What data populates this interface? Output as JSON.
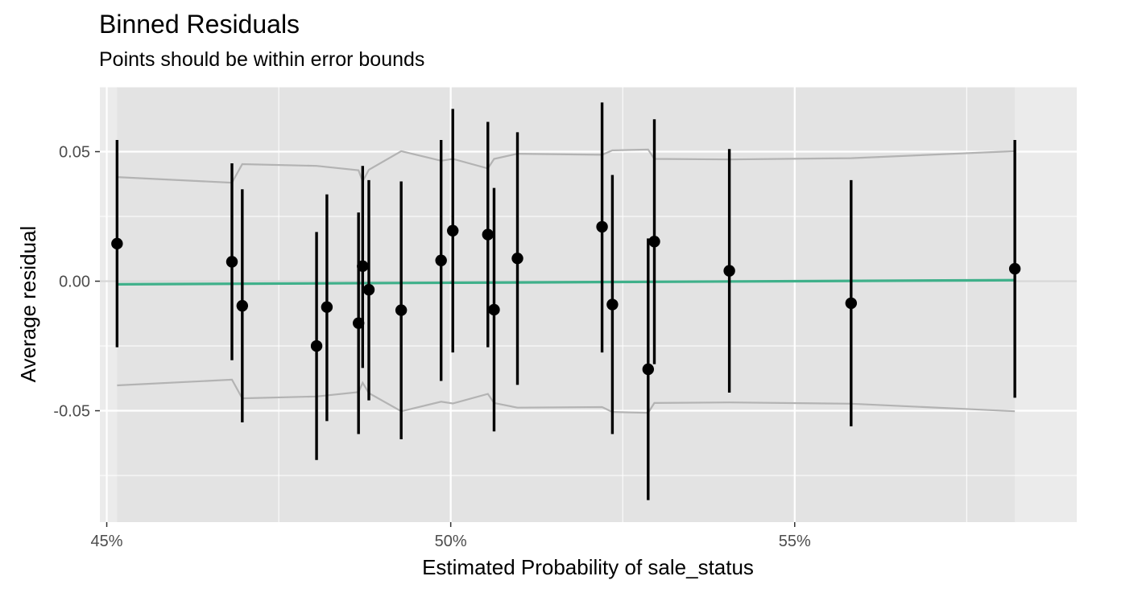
{
  "chart_data": {
    "type": "scatter",
    "title": "Binned Residuals",
    "subtitle": "Points should be within error bounds",
    "xlabel": "Estimated Probability of sale_status",
    "ylabel": "Average residual",
    "xlim": [
      44.9,
      59.1
    ],
    "ylim": [
      -0.093,
      0.075
    ],
    "x_ticks": [
      45,
      50,
      55
    ],
    "x_tick_labels": [
      "45%",
      "50%",
      "55%"
    ],
    "y_ticks": [
      -0.05,
      0.0,
      0.05
    ],
    "y_tick_labels": [
      "-0.05",
      "0.00",
      "0.05"
    ],
    "shaded_band": [
      45.15,
      58.2
    ],
    "colors": {
      "panel": "#ebebeb",
      "band": "#e3e3e3",
      "grid": "#ffffff",
      "bounds": "#b3b3b3",
      "trend": "#3fb08a",
      "points": "#000000"
    },
    "points": [
      {
        "x": 45.15,
        "y": 0.0145,
        "lo": -0.0255,
        "hi": 0.0545
      },
      {
        "x": 46.82,
        "y": 0.0075,
        "lo": -0.0305,
        "hi": 0.0455
      },
      {
        "x": 46.97,
        "y": -0.0095,
        "lo": -0.0545,
        "hi": 0.0355
      },
      {
        "x": 48.05,
        "y": -0.025,
        "lo": -0.069,
        "hi": 0.019
      },
      {
        "x": 48.2,
        "y": -0.01,
        "lo": -0.054,
        "hi": 0.0335
      },
      {
        "x": 48.66,
        "y": -0.0162,
        "lo": -0.059,
        "hi": 0.0265
      },
      {
        "x": 48.72,
        "y": 0.0058,
        "lo": -0.0335,
        "hi": 0.0445
      },
      {
        "x": 48.81,
        "y": -0.0033,
        "lo": -0.046,
        "hi": 0.039
      },
      {
        "x": 49.28,
        "y": -0.0112,
        "lo": -0.061,
        "hi": 0.0385
      },
      {
        "x": 49.86,
        "y": 0.008,
        "lo": -0.0385,
        "hi": 0.0545
      },
      {
        "x": 50.03,
        "y": 0.0195,
        "lo": -0.0275,
        "hi": 0.0665
      },
      {
        "x": 50.54,
        "y": 0.018,
        "lo": -0.0255,
        "hi": 0.0615
      },
      {
        "x": 50.63,
        "y": -0.011,
        "lo": -0.058,
        "hi": 0.036
      },
      {
        "x": 50.97,
        "y": 0.0088,
        "lo": -0.04,
        "hi": 0.0575
      },
      {
        "x": 52.2,
        "y": 0.021,
        "lo": -0.0275,
        "hi": 0.069
      },
      {
        "x": 52.35,
        "y": -0.009,
        "lo": -0.059,
        "hi": 0.041
      },
      {
        "x": 52.87,
        "y": -0.034,
        "lo": -0.0845,
        "hi": 0.0165
      },
      {
        "x": 52.96,
        "y": 0.0153,
        "lo": -0.032,
        "hi": 0.0625
      },
      {
        "x": 54.05,
        "y": 0.004,
        "lo": -0.043,
        "hi": 0.051
      },
      {
        "x": 55.82,
        "y": -0.0085,
        "lo": -0.056,
        "hi": 0.039
      },
      {
        "x": 58.2,
        "y": 0.0048,
        "lo": -0.045,
        "hi": 0.0545
      }
    ],
    "upper_bound": [
      [
        45.15,
        0.0402
      ],
      [
        46.82,
        0.038
      ],
      [
        46.97,
        0.0452
      ],
      [
        48.05,
        0.0445
      ],
      [
        48.66,
        0.0428
      ],
      [
        48.72,
        0.0385
      ],
      [
        48.81,
        0.043
      ],
      [
        49.28,
        0.0502
      ],
      [
        49.86,
        0.0465
      ],
      [
        50.03,
        0.0472
      ],
      [
        50.54,
        0.0435
      ],
      [
        50.63,
        0.0472
      ],
      [
        50.97,
        0.0492
      ],
      [
        52.2,
        0.0488
      ],
      [
        52.35,
        0.0505
      ],
      [
        52.87,
        0.0508
      ],
      [
        52.96,
        0.0472
      ],
      [
        54.05,
        0.047
      ],
      [
        55.82,
        0.0475
      ],
      [
        58.2,
        0.0502
      ]
    ],
    "lower_bound": [
      [
        45.15,
        -0.0402
      ],
      [
        46.82,
        -0.038
      ],
      [
        46.97,
        -0.0452
      ],
      [
        48.05,
        -0.0445
      ],
      [
        48.66,
        -0.0428
      ],
      [
        48.72,
        -0.0392
      ],
      [
        48.81,
        -0.0432
      ],
      [
        49.28,
        -0.0502
      ],
      [
        49.86,
        -0.0465
      ],
      [
        50.03,
        -0.0472
      ],
      [
        50.54,
        -0.0435
      ],
      [
        50.63,
        -0.047
      ],
      [
        50.97,
        -0.0488
      ],
      [
        52.2,
        -0.0486
      ],
      [
        52.35,
        -0.0505
      ],
      [
        52.87,
        -0.0508
      ],
      [
        52.96,
        -0.047
      ],
      [
        54.05,
        -0.0468
      ],
      [
        55.82,
        -0.0473
      ],
      [
        58.2,
        -0.0502
      ]
    ],
    "trend_line": [
      [
        45.15,
        -0.0012
      ],
      [
        58.2,
        0.0004
      ]
    ]
  }
}
